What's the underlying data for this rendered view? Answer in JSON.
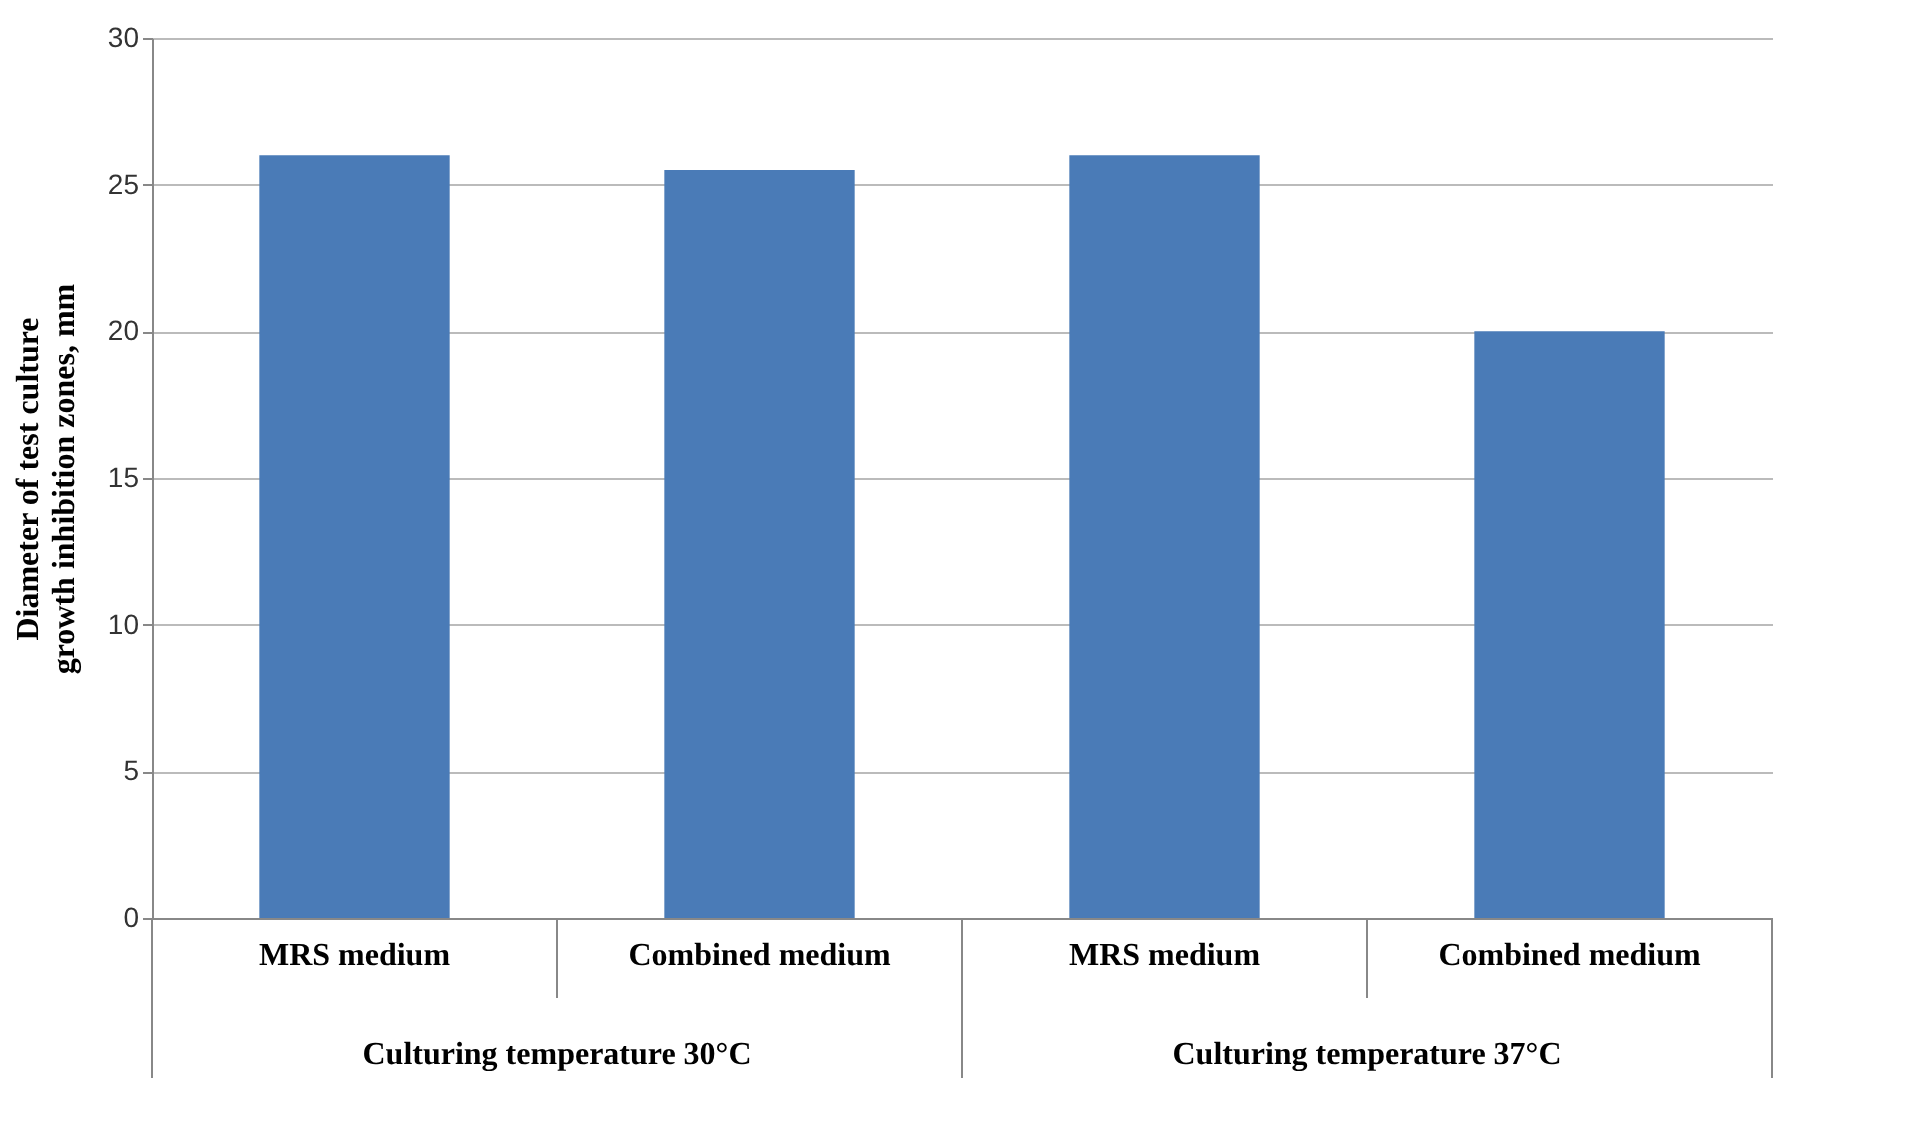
{
  "chart_data": {
    "type": "bar",
    "ylabel": "Diameter of test culture growth inhibition zones, mm",
    "categories": [
      "MRS medium",
      "Combined medium",
      "MRS medium",
      "Combined medium"
    ],
    "values": [
      26,
      25.5,
      26,
      20
    ],
    "color": "#4a7bb7",
    "ylim": [
      0,
      30
    ],
    "yticks": [
      0,
      5,
      10,
      15,
      20,
      25,
      30
    ],
    "grid": "y",
    "annotations": [
      "Culturing temperature 30°C",
      "Culturing temperature 37°C"
    ]
  }
}
